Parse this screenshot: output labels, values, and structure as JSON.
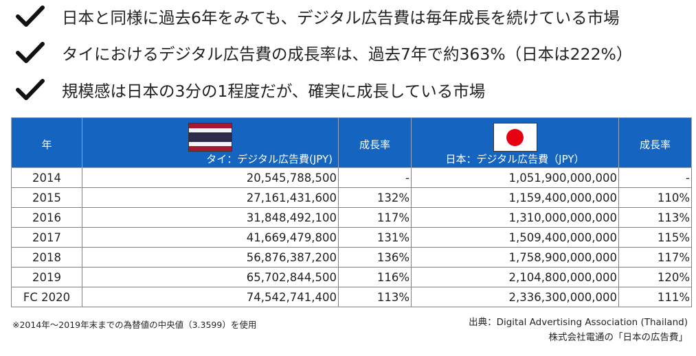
{
  "bullets": [
    "日本と同様に過去6年をみても、デジタル広告費は毎年成長を続けている市場",
    "タイにおけるデジタル広告費の成長率は、過去7年で約363%（日本は222%）",
    "規模感は日本の3分の1程度だが、確実に成長している市場"
  ],
  "table": {
    "headers": {
      "year": "年",
      "thai": "タイ：デジタル広告費(JPY)",
      "thai_growth": "成長率",
      "japan": "日本：デジタル広告費（JPY）",
      "japan_growth": "成長率"
    },
    "rows": [
      {
        "year": "2014",
        "thai": "20,545,788,500",
        "thai_growth": "-",
        "japan": "1,051,900,000,000",
        "japan_growth": "-"
      },
      {
        "year": "2015",
        "thai": "27,161,431,600",
        "thai_growth": "132%",
        "japan": "1,159,400,000,000",
        "japan_growth": "110%"
      },
      {
        "year": "2016",
        "thai": "31,848,492,100",
        "thai_growth": "117%",
        "japan": "1,310,000,000,000",
        "japan_growth": "113%"
      },
      {
        "year": "2017",
        "thai": "41,669,479,800",
        "thai_growth": "131%",
        "japan": "1,509,400,000,000",
        "japan_growth": "115%"
      },
      {
        "year": "2018",
        "thai": "56,876,387,200",
        "thai_growth": "136%",
        "japan": "1,758,900,000,000",
        "japan_growth": "117%"
      },
      {
        "year": "2019",
        "thai": "65,702,844,500",
        "thai_growth": "116%",
        "japan": "2,104,800,000,000",
        "japan_growth": "120%"
      },
      {
        "year": "FC 2020",
        "thai": "74,542,741,400",
        "thai_growth": "113%",
        "japan": "2,336,300,000,000",
        "japan_growth": "111%"
      }
    ]
  },
  "footnote": "※2014年～2019年末までの為替値の中央値（3.3599）を使用",
  "source": {
    "line1": "出典：Digital Advertising Association (Thailand)",
    "line2": "株式会社電通の「日本の広告費」"
  },
  "icons": {
    "check": "check-icon",
    "thai_flag": "thailand-flag-icon",
    "japan_flag": "japan-flag-icon"
  },
  "colors": {
    "header_bg": "#1565c0",
    "thai_flag": [
      "#a51931",
      "#f4f5f8",
      "#2d2a4a",
      "#f4f5f8",
      "#a51931"
    ],
    "japan_red": "#e60012"
  }
}
